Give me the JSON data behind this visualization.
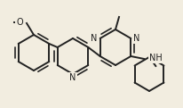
{
  "bg_color": "#f2ede0",
  "line_color": "#222222",
  "line_width": 1.4,
  "font_size": 6.5,
  "figsize": [
    2.06,
    1.21
  ],
  "dpi": 100,
  "xlim": [
    0,
    206
  ],
  "ylim": [
    0,
    121
  ]
}
